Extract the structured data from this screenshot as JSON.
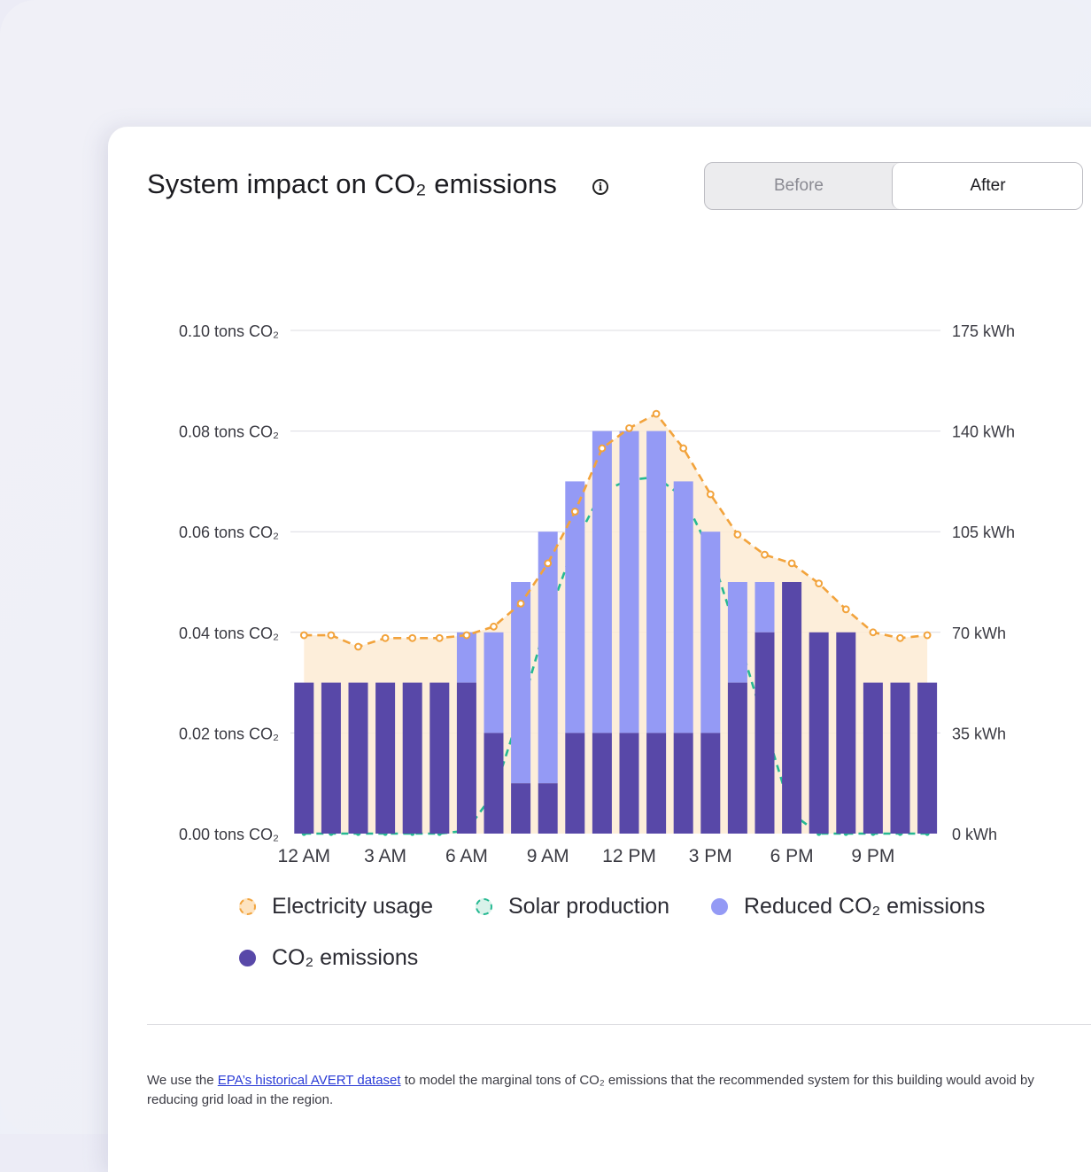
{
  "header": {
    "title": "System impact on CO₂ emissions",
    "info_symbol": "i",
    "toggle": {
      "before_label": "Before",
      "after_label": "After",
      "selected": "After"
    }
  },
  "chart_data": {
    "type": "bar",
    "title": "System impact on CO₂ emissions",
    "hours": 24,
    "x_tick_labels": [
      "12 AM",
      "3 AM",
      "6 AM",
      "9 AM",
      "12 PM",
      "3 PM",
      "6 PM",
      "9 PM"
    ],
    "x_tick_every": 3,
    "y_left": {
      "label_suffix": "tons CO₂",
      "ylim": [
        0,
        0.1
      ],
      "ticks": [
        "0.00 tons CO₂",
        "0.02 tons CO₂",
        "0.04 tons CO₂",
        "0.06 tons CO₂",
        "0.08 tons CO₂",
        "0.10 tons CO₂"
      ],
      "tick_values": [
        0,
        0.02,
        0.04,
        0.06,
        0.08,
        0.1
      ]
    },
    "y_right": {
      "ylim": [
        0,
        175
      ],
      "ticks": [
        "0 kWh",
        "35 kWh",
        "70 kWh",
        "105 kWh",
        "140 kWh",
        "175 kWh"
      ],
      "tick_values": [
        0,
        35,
        70,
        105,
        140,
        175
      ]
    },
    "grid": true,
    "series": [
      {
        "name": "CO₂ emissions",
        "kind": "bar",
        "axis": "left",
        "color": "#5848a8",
        "values": [
          0.03,
          0.03,
          0.03,
          0.03,
          0.03,
          0.03,
          0.03,
          0.02,
          0.01,
          0.01,
          0.02,
          0.02,
          0.02,
          0.02,
          0.02,
          0.02,
          0.03,
          0.04,
          0.05,
          0.04,
          0.04,
          0.03,
          0.03,
          0.03
        ]
      },
      {
        "name": "Reduced CO₂ emissions",
        "kind": "bar-stacked",
        "axis": "left",
        "color": "#949af5",
        "values": [
          0,
          0,
          0,
          0,
          0,
          0,
          0.01,
          0.02,
          0.04,
          0.05,
          0.05,
          0.06,
          0.06,
          0.06,
          0.05,
          0.04,
          0.02,
          0.01,
          0,
          0,
          0,
          0,
          0,
          0
        ]
      },
      {
        "name": "Electricity usage",
        "kind": "line-area",
        "axis": "right",
        "color": "#f2a33c",
        "fill": "#fdebd3",
        "values": [
          69,
          69,
          65,
          68,
          68,
          68,
          69,
          72,
          80,
          94,
          112,
          134,
          141,
          146,
          134,
          118,
          104,
          97,
          94,
          87,
          78,
          70,
          68,
          69
        ]
      },
      {
        "name": "Solar production",
        "kind": "line",
        "axis": "right",
        "color": "#26b992",
        "values": [
          0,
          0,
          0,
          0,
          0,
          0,
          1,
          14,
          43,
          75,
          101,
          119,
          123,
          124,
          117,
          98,
          69,
          38,
          7,
          0,
          0,
          0,
          0,
          0
        ]
      }
    ]
  },
  "legend": {
    "items": [
      {
        "label": "Electricity usage",
        "fill": "#fde3c0",
        "border": "#f2a33c",
        "style": "dashed"
      },
      {
        "label": "Solar production",
        "fill": "#d9f2ea",
        "border": "#26b992",
        "style": "dashed"
      },
      {
        "label": "Reduced CO₂ emissions",
        "fill": "#949af5",
        "border": "#949af5",
        "style": "solid"
      },
      {
        "label": "CO₂ emissions",
        "fill": "#5848a8",
        "border": "#5848a8",
        "style": "solid"
      }
    ]
  },
  "footnote": {
    "prefix": "We use the ",
    "link_text": "EPA’s historical AVERT dataset",
    "suffix": " to model the marginal tons of CO₂ emissions that the recommended system for this building would avoid by reducing grid load in the region."
  }
}
